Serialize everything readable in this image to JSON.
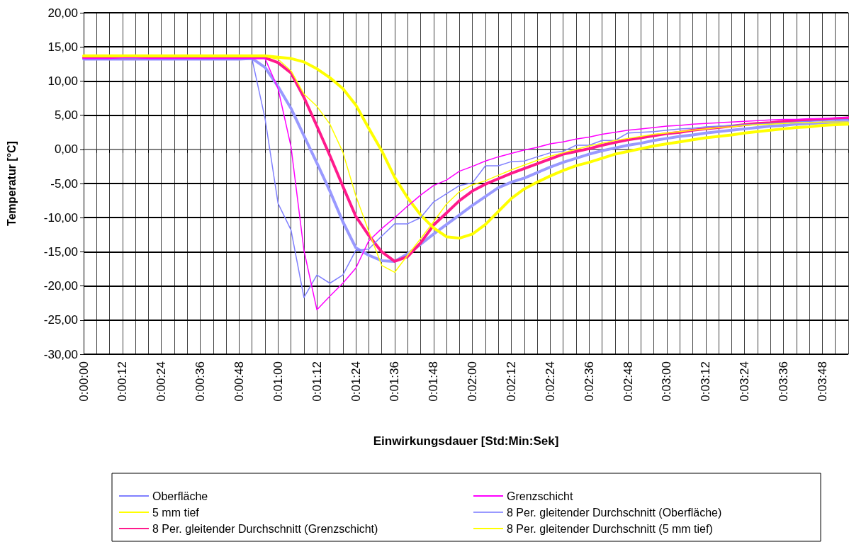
{
  "chart_data": {
    "type": "line",
    "xlabel": "Einwirkungsdauer [Std:Min:Sek]",
    "ylabel": "Temperatur [°C]",
    "categories": [
      "0:00:00",
      null,
      null,
      "0:00:12",
      null,
      null,
      "0:00:24",
      null,
      null,
      "0:00:36",
      null,
      null,
      "0:00:48",
      null,
      null,
      "0:01:00",
      null,
      null,
      "0:01:12",
      null,
      null,
      "0:01:24",
      null,
      null,
      "0:01:36",
      null,
      null,
      "0:01:48",
      null,
      null,
      "0:02:00",
      null,
      null,
      "0:02:12",
      null,
      null,
      "0:02:24",
      null,
      null,
      "0:02:36",
      null,
      null,
      "0:02:48",
      null,
      null,
      "0:03:00",
      null,
      null,
      "0:03:12",
      null,
      null,
      "0:03:24",
      null,
      null,
      "0:03:36",
      null,
      null,
      "0:03:48",
      null,
      null
    ],
    "series": [
      {
        "name": "Oberfläche",
        "color": "#8080ff",
        "values": [
          13.2,
          13.2,
          13.2,
          13.3,
          13.3,
          13.2,
          13.2,
          13.2,
          13.2,
          13.2,
          13.2,
          13.2,
          13.2,
          13.2,
          4.5,
          -7.9,
          -11.8,
          -21.7,
          -18.4,
          -19.6,
          -18.4,
          -14.8,
          -14.6,
          -12.7,
          -10.9,
          -10.9,
          -10.0,
          -7.7,
          -6.5,
          -5.3,
          -4.9,
          -2.4,
          -2.4,
          -1.8,
          -1.7,
          -1.1,
          -0.5,
          -0.3,
          0.6,
          0.6,
          1.3,
          1.3,
          2.4,
          2.5,
          2.6,
          2.8,
          3.0,
          3.1,
          3.3,
          3.4,
          3.5,
          3.6,
          3.7,
          3.8,
          3.9,
          4.0,
          4.1,
          4.2,
          4.3,
          4.4
        ]
      },
      {
        "name": "Grenzschicht",
        "color": "#ff00ff",
        "values": [
          13.3,
          13.3,
          13.3,
          13.4,
          13.4,
          13.3,
          13.3,
          13.3,
          13.3,
          13.3,
          13.3,
          13.3,
          13.3,
          13.3,
          13.3,
          8.9,
          0.4,
          -14.8,
          -23.5,
          -21.5,
          -19.6,
          -17.4,
          -13.4,
          -11.6,
          -10.0,
          -8.3,
          -6.7,
          -5.3,
          -4.5,
          -3.2,
          -2.5,
          -1.7,
          -1.1,
          -0.6,
          -0.1,
          0.3,
          0.8,
          1.1,
          1.5,
          1.8,
          2.2,
          2.5,
          2.8,
          3.0,
          3.2,
          3.4,
          3.5,
          3.7,
          3.8,
          3.9,
          4.0,
          4.1,
          4.2,
          4.3,
          4.4,
          4.4,
          4.5,
          4.5,
          4.6,
          4.7
        ]
      },
      {
        "name": "5 mm tief",
        "color": "#ffff00",
        "values": [
          13.6,
          13.6,
          13.6,
          13.6,
          13.6,
          13.6,
          13.6,
          13.6,
          13.6,
          13.6,
          13.6,
          13.6,
          13.6,
          13.6,
          13.6,
          13.2,
          11.5,
          8.1,
          6.3,
          3.7,
          -0.4,
          -6.8,
          -12.0,
          -17.0,
          -18.0,
          -15.5,
          -13.1,
          -10.6,
          -8.0,
          -6.2,
          -5.2,
          -4.6,
          -3.8,
          -3.0,
          -2.3,
          -1.6,
          -1.0,
          -0.5,
          0.0,
          0.5,
          0.9,
          1.3,
          1.6,
          1.9,
          2.2,
          2.4,
          2.6,
          2.8,
          3.0,
          3.2,
          3.3,
          3.5,
          3.6,
          3.7,
          3.8,
          3.9,
          3.9,
          4.0,
          4.0,
          4.0
        ]
      },
      {
        "name": "8 Per. gleitender Durchschnitt (Oberfläche)",
        "color": "#9999ff",
        "values": [
          13.2,
          13.2,
          13.2,
          13.2,
          13.2,
          13.2,
          13.2,
          13.2,
          13.2,
          13.2,
          13.2,
          13.2,
          13.2,
          13.3,
          12.0,
          9.2,
          6.0,
          2.0,
          -2.0,
          -6.1,
          -10.6,
          -14.4,
          -15.5,
          -16.3,
          -16.4,
          -15.3,
          -13.9,
          -12.4,
          -11.0,
          -9.6,
          -8.2,
          -6.9,
          -5.6,
          -4.8,
          -4.2,
          -3.4,
          -2.6,
          -1.9,
          -1.3,
          -0.7,
          -0.2,
          0.2,
          0.6,
          0.9,
          1.3,
          1.6,
          1.9,
          2.1,
          2.4,
          2.6,
          2.8,
          3.0,
          3.2,
          3.4,
          3.5,
          3.7,
          3.8,
          3.9,
          4.0,
          4.1
        ]
      },
      {
        "name": "8 Per. gleitender Durchschnitt (Grenzschicht)",
        "color": "#ff1a8c",
        "values": [
          13.4,
          13.4,
          13.4,
          13.4,
          13.4,
          13.4,
          13.4,
          13.4,
          13.4,
          13.4,
          13.4,
          13.4,
          13.4,
          13.4,
          13.4,
          12.7,
          11.2,
          7.6,
          3.4,
          -0.9,
          -5.4,
          -9.8,
          -12.6,
          -15.0,
          -16.4,
          -15.7,
          -13.7,
          -11.1,
          -9.3,
          -7.5,
          -6.1,
          -5.1,
          -4.3,
          -3.5,
          -2.8,
          -2.1,
          -1.4,
          -0.7,
          -0.3,
          0.1,
          0.6,
          1.0,
          1.4,
          1.7,
          2.0,
          2.3,
          2.5,
          2.8,
          3.0,
          3.2,
          3.4,
          3.6,
          3.8,
          3.9,
          4.1,
          4.2,
          4.3,
          4.4,
          4.5,
          4.6
        ]
      },
      {
        "name": "8 Per. gleitender Durchschnitt (5 mm tief)",
        "color": "#ffff00",
        "values": [
          13.7,
          13.7,
          13.7,
          13.7,
          13.7,
          13.7,
          13.7,
          13.7,
          13.7,
          13.7,
          13.7,
          13.7,
          13.7,
          13.7,
          13.7,
          13.5,
          13.3,
          12.8,
          11.8,
          10.5,
          8.9,
          6.5,
          3.1,
          -0.2,
          -4.1,
          -7.1,
          -9.6,
          -11.5,
          -12.8,
          -13.0,
          -12.4,
          -11.0,
          -9.1,
          -7.2,
          -5.8,
          -4.8,
          -3.9,
          -3.1,
          -2.4,
          -1.9,
          -1.3,
          -0.7,
          -0.3,
          0.1,
          0.5,
          0.8,
          1.1,
          1.4,
          1.7,
          1.9,
          2.1,
          2.4,
          2.6,
          2.8,
          3.0,
          3.2,
          3.3,
          3.5,
          3.6,
          3.7
        ]
      }
    ],
    "ylim": [
      -30,
      20
    ],
    "yticks": [
      {
        "value": -30,
        "label": "-30,00"
      },
      {
        "value": -25,
        "label": "-25,00"
      },
      {
        "value": -20,
        "label": "-20,00"
      },
      {
        "value": -15,
        "label": "-15,00"
      },
      {
        "value": -10,
        "label": "-10,00"
      },
      {
        "value": -5,
        "label": "-5,00"
      },
      {
        "value": 0,
        "label": "0,00"
      },
      {
        "value": 5,
        "label": "5,00"
      },
      {
        "value": 10,
        "label": "10,00"
      },
      {
        "value": 15,
        "label": "15,00"
      },
      {
        "value": 20,
        "label": "20,00"
      }
    ],
    "grid": true,
    "legend": "bottom",
    "marker": "none",
    "line_style": "solid"
  }
}
